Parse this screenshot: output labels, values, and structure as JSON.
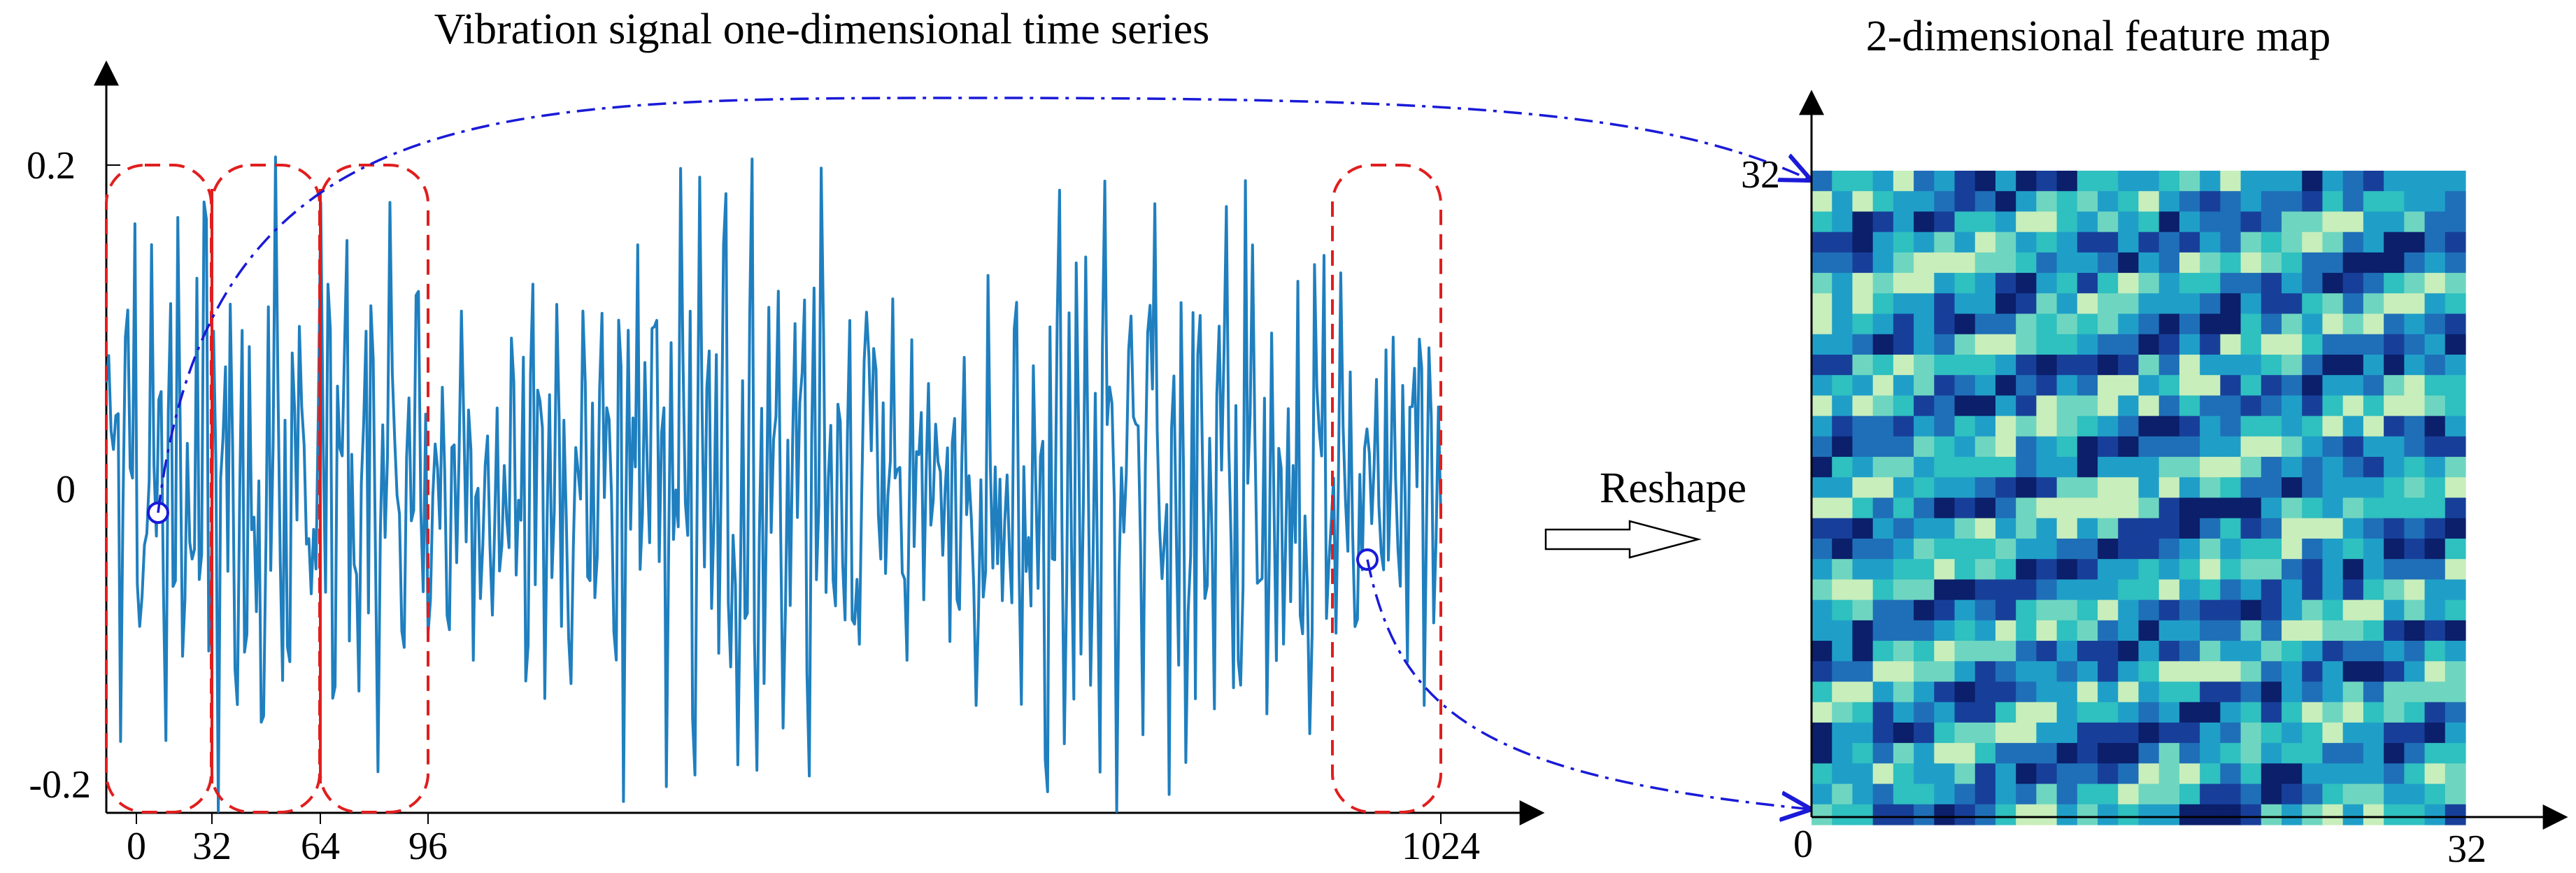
{
  "left_panel": {
    "title": "Vibration signal one-dimensional time series",
    "y_ticks": [
      "0.2",
      "0",
      "-0.2"
    ],
    "x_ticks": [
      "0",
      "32",
      "64",
      "96",
      "1024"
    ],
    "signal_color": "#1f7fbf",
    "window_color": "#e01e1e"
  },
  "arrow": {
    "label": "Reshape"
  },
  "right_panel": {
    "title": "2-dimensional feature map",
    "y_ticks": [
      "32"
    ],
    "x_ticks": [
      "0",
      "32"
    ],
    "grid_size": 32,
    "palette": [
      "#0b1f6b",
      "#173f9a",
      "#1f6fb8",
      "#1f9fc8",
      "#2fc0c0",
      "#6ed6c0",
      "#c8eebb"
    ]
  },
  "connector_color": "#1a1ad8"
}
